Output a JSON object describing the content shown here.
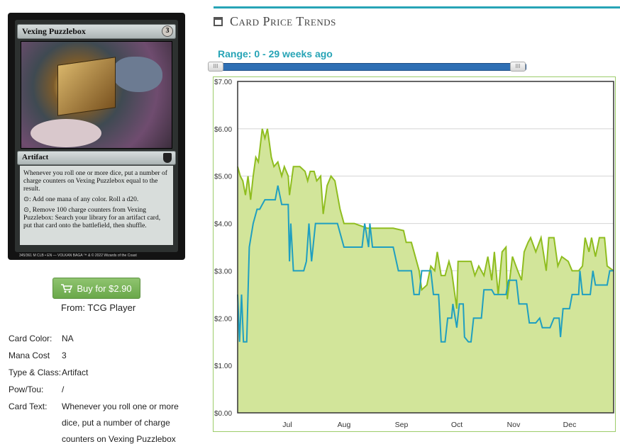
{
  "card": {
    "name": "Vexing Puzzlebox",
    "mana_cost": "3",
    "type_line": "Artifact",
    "rules_text": [
      "Whenever you roll one or more dice, put a number of charge counters on Vexing Puzzlebox equal to the result.",
      "⊙: Add one mana of any color. Roll a d20.",
      "⊙, Remove 100 charge counters from Vexing Puzzlebox: Search your library for an artifact card, put that card onto the battlefield, then shuffle."
    ],
    "footer": "345/361 M  CLB • EN  — VOLKAN BAGA   ™ & © 2022 Wizards of the Coast"
  },
  "buy": {
    "label": "Buy for $2.90",
    "from": "From: TCG Player",
    "icon": "cart-icon"
  },
  "details": [
    {
      "label": "Card Color:",
      "value": "NA"
    },
    {
      "label": "Mana Cost",
      "value": "3"
    },
    {
      "label": "Type & Class:",
      "value": "Artifact"
    },
    {
      "label": "Pow/Tou:",
      "value": "/"
    },
    {
      "label": "Card Text:",
      "value_lines": [
        "Whenever you roll one or more",
        "dice, put a number of charge",
        "counters on Vexing Puzzlebox"
      ]
    }
  ],
  "trends": {
    "title": "Card Price Trends",
    "icon": "calendar-icon",
    "range_label": "Range: 0 - 29 weeks ago",
    "accent": "#27a4b6"
  },
  "chart_data": {
    "type": "area",
    "x_ticks": [
      "Jul",
      "Aug",
      "Sep",
      "Oct",
      "Nov",
      "Dec"
    ],
    "y_ticks": [
      "$0.00",
      "$1.00",
      "$2.00",
      "$3.00",
      "$4.00",
      "$5.00",
      "$6.00",
      "$7.00"
    ],
    "ylim": [
      0,
      7
    ],
    "xlim": [
      0,
      29
    ],
    "grid": true,
    "series": [
      {
        "color": "#8fbd1f",
        "fill": "#d2e59a",
        "points": [
          [
            0,
            5.2
          ],
          [
            0.2,
            5.0
          ],
          [
            0.4,
            4.9
          ],
          [
            0.6,
            4.6
          ],
          [
            0.8,
            5.0
          ],
          [
            1.0,
            4.5
          ],
          [
            1.2,
            5.0
          ],
          [
            1.4,
            5.4
          ],
          [
            1.6,
            5.3
          ],
          [
            1.9,
            6.0
          ],
          [
            2.1,
            5.8
          ],
          [
            2.3,
            6.0
          ],
          [
            2.6,
            5.4
          ],
          [
            2.8,
            5.2
          ],
          [
            3.1,
            5.3
          ],
          [
            3.4,
            5.0
          ],
          [
            3.6,
            5.2
          ],
          [
            3.9,
            5.0
          ],
          [
            4.0,
            4.6
          ],
          [
            4.3,
            5.2
          ],
          [
            4.8,
            5.2
          ],
          [
            5.2,
            5.1
          ],
          [
            5.4,
            4.9
          ],
          [
            5.6,
            5.1
          ],
          [
            5.9,
            5.1
          ],
          [
            6.1,
            4.9
          ],
          [
            6.4,
            5.0
          ],
          [
            6.6,
            4.2
          ],
          [
            6.9,
            4.8
          ],
          [
            7.2,
            5.0
          ],
          [
            7.5,
            4.9
          ],
          [
            7.9,
            4.3
          ],
          [
            8.2,
            4.0
          ],
          [
            9.0,
            4.0
          ],
          [
            10.0,
            3.9
          ],
          [
            11.0,
            3.9
          ],
          [
            12.0,
            3.9
          ],
          [
            12.8,
            3.85
          ],
          [
            13.0,
            3.6
          ],
          [
            13.4,
            3.6
          ],
          [
            13.6,
            3.4
          ],
          [
            14.0,
            3.0
          ],
          [
            14.2,
            2.6
          ],
          [
            14.6,
            2.7
          ],
          [
            14.9,
            3.1
          ],
          [
            15.2,
            3.0
          ],
          [
            15.4,
            3.4
          ],
          [
            15.7,
            2.9
          ],
          [
            16.0,
            2.9
          ],
          [
            16.3,
            3.2
          ],
          [
            16.5,
            3.0
          ],
          [
            16.9,
            2.2
          ],
          [
            17.0,
            3.2
          ],
          [
            18.0,
            3.2
          ],
          [
            18.3,
            2.9
          ],
          [
            18.6,
            3.1
          ],
          [
            19.0,
            2.9
          ],
          [
            19.3,
            3.3
          ],
          [
            19.6,
            2.8
          ],
          [
            19.8,
            3.4
          ],
          [
            20.1,
            2.5
          ],
          [
            20.4,
            3.4
          ],
          [
            20.7,
            3.5
          ],
          [
            20.8,
            2.4
          ],
          [
            21.2,
            3.3
          ],
          [
            21.6,
            3.0
          ],
          [
            21.9,
            2.8
          ],
          [
            22.1,
            3.4
          ],
          [
            22.4,
            3.6
          ],
          [
            22.6,
            3.7
          ],
          [
            23.0,
            3.4
          ],
          [
            23.4,
            3.7
          ],
          [
            23.8,
            3.0
          ],
          [
            24.0,
            3.7
          ],
          [
            24.4,
            3.7
          ],
          [
            24.7,
            3.1
          ],
          [
            25.0,
            3.3
          ],
          [
            25.5,
            3.2
          ],
          [
            25.8,
            3.0
          ],
          [
            26.3,
            3.0
          ],
          [
            26.6,
            3.1
          ],
          [
            26.8,
            3.7
          ],
          [
            27.1,
            3.4
          ],
          [
            27.3,
            3.7
          ],
          [
            27.6,
            3.3
          ],
          [
            27.9,
            3.7
          ],
          [
            28.3,
            3.7
          ],
          [
            28.5,
            3.1
          ],
          [
            29.0,
            3.0
          ]
        ]
      },
      {
        "color": "#1f9fc0",
        "points": [
          [
            0,
            2.5
          ],
          [
            0.15,
            1.5
          ],
          [
            0.3,
            2.5
          ],
          [
            0.45,
            1.5
          ],
          [
            0.7,
            1.5
          ],
          [
            0.8,
            2.5
          ],
          [
            0.9,
            3.5
          ],
          [
            1.2,
            4.0
          ],
          [
            1.5,
            4.3
          ],
          [
            1.7,
            4.3
          ],
          [
            1.9,
            4.4
          ],
          [
            2.1,
            4.5
          ],
          [
            2.9,
            4.5
          ],
          [
            3.1,
            4.8
          ],
          [
            3.4,
            4.4
          ],
          [
            3.9,
            4.4
          ],
          [
            4.0,
            3.2
          ],
          [
            4.1,
            4.0
          ],
          [
            4.3,
            3.0
          ],
          [
            5.1,
            3.0
          ],
          [
            5.3,
            3.2
          ],
          [
            5.5,
            4.0
          ],
          [
            5.7,
            3.2
          ],
          [
            6.0,
            4.0
          ],
          [
            6.3,
            4.0
          ],
          [
            6.7,
            4.0
          ],
          [
            7.7,
            4.0
          ],
          [
            8.2,
            3.5
          ],
          [
            9.6,
            3.5
          ],
          [
            9.8,
            4.0
          ],
          [
            10.1,
            3.5
          ],
          [
            10.2,
            4.0
          ],
          [
            10.4,
            3.5
          ],
          [
            12.0,
            3.5
          ],
          [
            12.4,
            3.0
          ],
          [
            13.4,
            3.0
          ],
          [
            13.6,
            2.5
          ],
          [
            14.0,
            2.5
          ],
          [
            14.2,
            3.0
          ],
          [
            14.9,
            3.0
          ],
          [
            15.1,
            2.5
          ],
          [
            15.5,
            2.5
          ],
          [
            15.7,
            1.5
          ],
          [
            16.0,
            1.5
          ],
          [
            16.2,
            2.0
          ],
          [
            16.5,
            2.0
          ],
          [
            16.6,
            2.3
          ],
          [
            16.9,
            1.8
          ],
          [
            17.1,
            2.3
          ],
          [
            17.4,
            2.3
          ],
          [
            17.5,
            1.6
          ],
          [
            17.8,
            1.5
          ],
          [
            18.0,
            1.5
          ],
          [
            18.2,
            2.0
          ],
          [
            18.8,
            2.0
          ],
          [
            19.0,
            2.6
          ],
          [
            19.6,
            2.6
          ],
          [
            19.8,
            2.5
          ],
          [
            20.7,
            2.5
          ],
          [
            20.9,
            2.8
          ],
          [
            21.5,
            2.8
          ],
          [
            21.7,
            2.3
          ],
          [
            22.3,
            2.3
          ],
          [
            22.5,
            1.9
          ],
          [
            23.0,
            1.9
          ],
          [
            23.3,
            2.0
          ],
          [
            23.5,
            1.8
          ],
          [
            24.1,
            1.8
          ],
          [
            24.4,
            2.0
          ],
          [
            24.8,
            2.0
          ],
          [
            24.9,
            1.6
          ],
          [
            25.1,
            2.2
          ],
          [
            25.6,
            2.2
          ],
          [
            25.8,
            2.5
          ],
          [
            26.3,
            2.5
          ],
          [
            26.4,
            3.0
          ],
          [
            26.6,
            2.5
          ],
          [
            27.2,
            2.5
          ],
          [
            27.4,
            3.0
          ],
          [
            27.6,
            2.7
          ],
          [
            28.5,
            2.7
          ],
          [
            28.7,
            3.0
          ],
          [
            29.0,
            3.0
          ]
        ]
      }
    ]
  }
}
